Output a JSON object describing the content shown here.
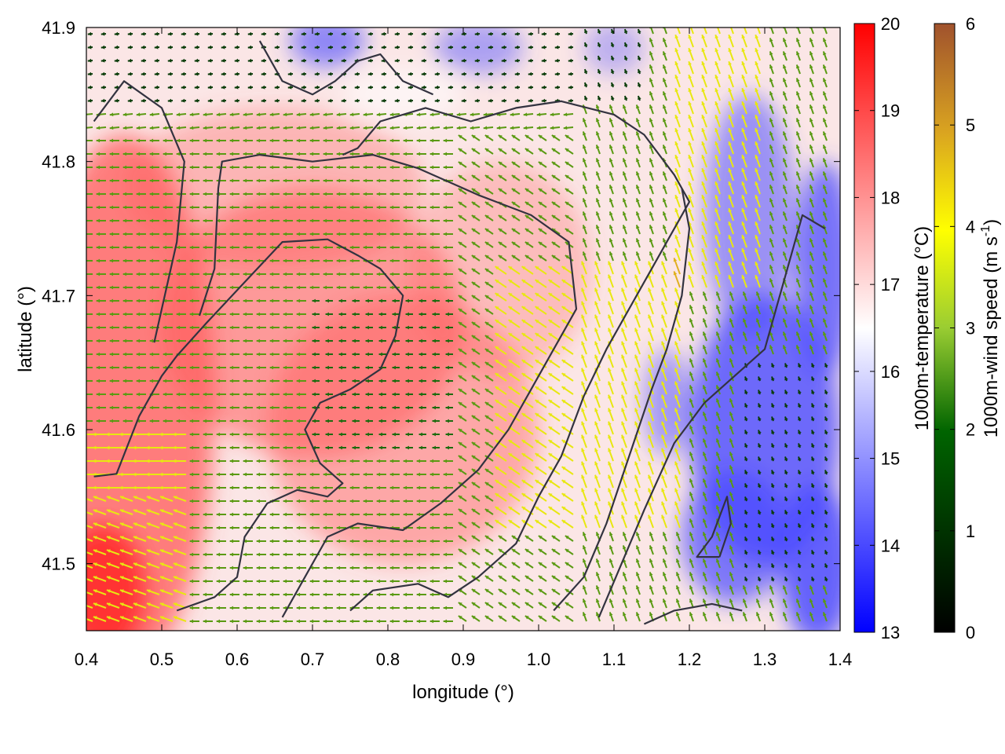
{
  "chart_data": {
    "type": "heatmap",
    "title": "",
    "xlabel": "longitude (°)",
    "ylabel": "latitude (°)",
    "xlim": [
      0.4,
      1.4
    ],
    "ylim": [
      41.45,
      41.9
    ],
    "x_ticks": [
      "0.4",
      "0.5",
      "0.6",
      "0.7",
      "0.8",
      "0.9",
      "1.0",
      "1.1",
      "1.2",
      "1.3",
      "1.4"
    ],
    "y_ticks": [
      "41.5",
      "41.6",
      "41.7",
      "41.8",
      "41.9"
    ],
    "overlays": [
      "temperature field (colour fill)",
      "wind vectors (arrows coloured by speed)",
      "terrain contour lines"
    ],
    "colorbars": [
      {
        "name": "temperature",
        "label_main": "1000m-temperature (°C)",
        "min": 13,
        "max": 20,
        "ticks": [
          "13",
          "14",
          "15",
          "16",
          "17",
          "18",
          "19",
          "20"
        ],
        "colors": [
          "#0000ff",
          "#ffffff",
          "#ff0000"
        ]
      },
      {
        "name": "wind_speed",
        "label_prefix": "1000m-wind speed (m s",
        "label_sup": "-1",
        "label_suffix": ")",
        "min": 0,
        "max": 6,
        "ticks": [
          "0",
          "1",
          "2",
          "3",
          "4",
          "5",
          "6"
        ],
        "colors": [
          "#000000",
          "#006400",
          "#9acd32",
          "#ffff00",
          "#daa520",
          "#a0522d"
        ]
      }
    ],
    "palette": {
      "cold": "#4a4aff",
      "warm": "#ff5a5a",
      "warmer": "#ff2a2a",
      "neutral": "#ffffff",
      "contour": "#333340"
    }
  }
}
